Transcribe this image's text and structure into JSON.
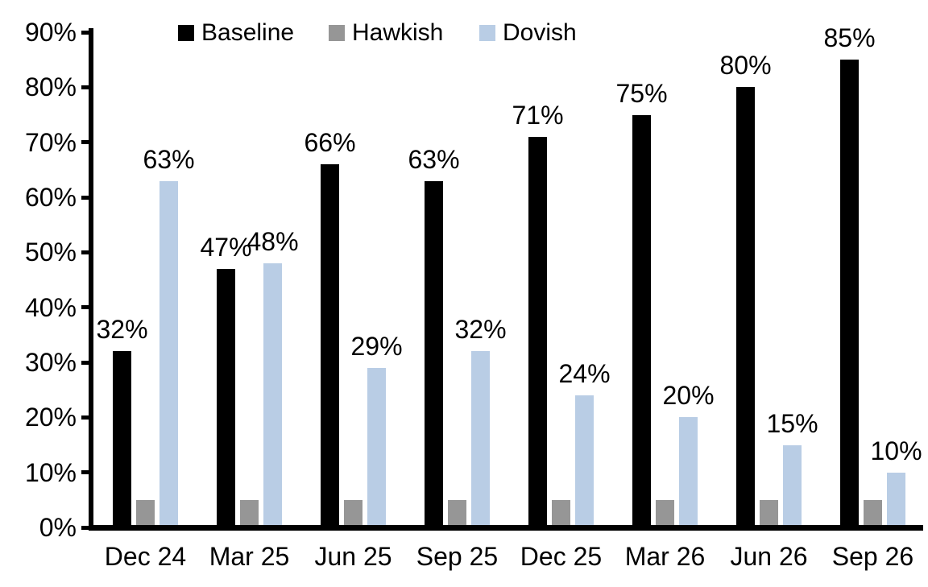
{
  "chart_data": {
    "type": "bar",
    "title": "",
    "xlabel": "",
    "ylabel": "",
    "categories": [
      "Dec 24",
      "Mar 25",
      "Jun 25",
      "Sep 25",
      "Dec 25",
      "Mar 26",
      "Jun 26",
      "Sep 26"
    ],
    "series": [
      {
        "name": "Baseline",
        "color": "#000000",
        "values": [
          32,
          47,
          66,
          63,
          71,
          75,
          80,
          85
        ],
        "data_labels": [
          "32%",
          "47%",
          "66%",
          "63%",
          "71%",
          "75%",
          "80%",
          "85%"
        ],
        "show_labels": true
      },
      {
        "name": "Hawkish",
        "color": "#969696",
        "values": [
          5,
          5,
          5,
          5,
          5,
          5,
          5,
          5
        ],
        "data_labels": [],
        "show_labels": false
      },
      {
        "name": "Dovish",
        "color": "#B9CDE5",
        "values": [
          63,
          48,
          29,
          32,
          24,
          20,
          15,
          10
        ],
        "data_labels": [
          "63%",
          "48%",
          "29%",
          "32%",
          "24%",
          "20%",
          "15%",
          "10%"
        ],
        "show_labels": true
      }
    ],
    "y_ticks": [
      "0%",
      "10%",
      "20%",
      "30%",
      "40%",
      "50%",
      "60%",
      "70%",
      "80%",
      "90%"
    ],
    "ylim": [
      0,
      90
    ],
    "grid": false,
    "legend_position": "top",
    "axis_color": "#000000",
    "background_color": "#FFFFFF"
  }
}
